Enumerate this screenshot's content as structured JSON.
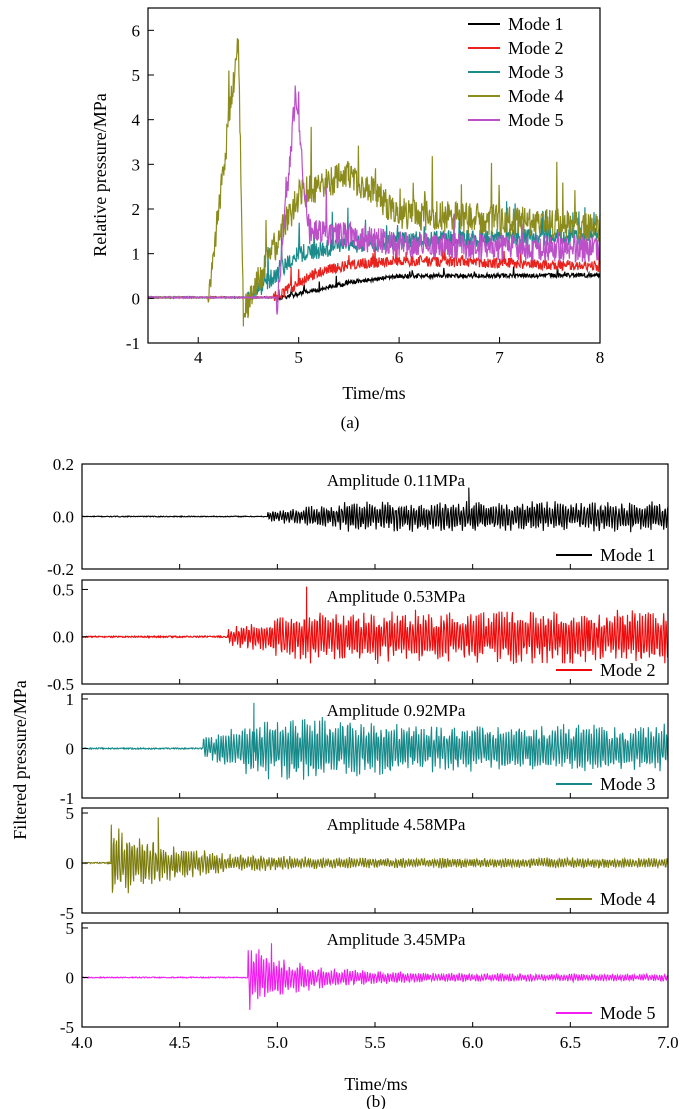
{
  "chart_data": [
    {
      "type": "line",
      "panel": "(a)",
      "xlabel": "Time/ms",
      "ylabel": "Relative pressure/MPa",
      "xlim": [
        3.5,
        8
      ],
      "ylim": [
        -1,
        6.5
      ],
      "xticks": [
        "4",
        "5",
        "6",
        "7",
        "8"
      ],
      "yticks": [
        "-1",
        "0",
        "1",
        "2",
        "3",
        "4",
        "5",
        "6"
      ],
      "legend_position": "top-right",
      "series": [
        {
          "name": "Mode 1",
          "color": "#000000",
          "onset": 4.8,
          "final": 0.5,
          "noise": 0.05,
          "x": [
            4.8,
            5.5,
            6.0,
            8.0
          ],
          "y": [
            0.0,
            0.35,
            0.5,
            0.52
          ]
        },
        {
          "name": "Mode 2",
          "color": "#e8231e",
          "onset": 4.75,
          "final": 0.75,
          "noise": 0.12,
          "x": [
            4.75,
            5.2,
            5.5,
            6.0,
            8.0
          ],
          "y": [
            0.0,
            0.6,
            0.75,
            0.85,
            0.72
          ]
        },
        {
          "name": "Mode 3",
          "color": "#1b8b8b",
          "onset": 4.5,
          "final": 1.35,
          "noise": 0.2,
          "x": [
            4.5,
            5.0,
            5.5,
            6.0,
            8.0
          ],
          "y": [
            0.0,
            1.0,
            1.2,
            1.3,
            1.4
          ]
        },
        {
          "name": "Mode 4",
          "color": "#8c8c1e",
          "onset": 4.1,
          "final": 1.6,
          "noise": 0.35,
          "x": [
            4.1,
            4.4,
            4.45,
            5.0,
            5.5,
            6.0,
            8.0
          ],
          "y": [
            0.0,
            5.8,
            -0.35,
            2.3,
            2.8,
            1.9,
            1.6
          ]
        },
        {
          "name": "Mode 5",
          "color": "#bb50c8",
          "onset": 4.78,
          "final": 1.1,
          "noise": 0.3,
          "x": [
            4.78,
            4.97,
            5.1,
            5.5,
            6.0,
            8.0
          ],
          "y": [
            -0.25,
            4.6,
            1.5,
            1.4,
            1.2,
            1.1
          ]
        }
      ]
    },
    {
      "type": "line",
      "panel": "(b)",
      "xlabel": "Time/ms",
      "ylabel": "Filtered pressure/MPa",
      "xlim": [
        4.0,
        7.0
      ],
      "xticks": [
        "4.0",
        "4.5",
        "5.0",
        "5.5",
        "6.0",
        "6.5",
        "7.0"
      ],
      "legend_position": "bottom-right",
      "subplots": [
        {
          "name": "Mode 1",
          "amplitude_label": "Amplitude 0.11MPa",
          "color": "#000000",
          "ylim": [
            -0.2,
            0.2
          ],
          "yticks": [
            "-0.2",
            "0.0",
            "0.2"
          ],
          "onset": 4.95,
          "amplitude": 0.11
        },
        {
          "name": "Mode 2",
          "amplitude_label": "Amplitude 0.53MPa",
          "color": "#ee0a0a",
          "ylim": [
            -0.5,
            0.6
          ],
          "yticks": [
            "-0.5",
            "0.0",
            "0.5"
          ],
          "onset": 4.75,
          "amplitude": 0.53
        },
        {
          "name": "Mode 3",
          "amplitude_label": "Amplitude 0.92MPa",
          "color": "#168a8a",
          "ylim": [
            -1,
            1.1
          ],
          "yticks": [
            "-1",
            "0",
            "1"
          ],
          "onset": 4.62,
          "amplitude": 0.92
        },
        {
          "name": "Mode 4",
          "amplitude_label": "Amplitude 4.58MPa",
          "color": "#7b7b0c",
          "ylim": [
            -5,
            5.5
          ],
          "yticks": [
            "-5",
            "0",
            "5"
          ],
          "onset": 4.15,
          "amplitude": 4.58
        },
        {
          "name": "Mode 5",
          "amplitude_label": "Amplitude 3.45MPa",
          "color": "#f01cf0",
          "ylim": [
            -5,
            5.5
          ],
          "yticks": [
            "-5",
            "0",
            "5"
          ],
          "onset": 4.85,
          "amplitude": 3.45
        }
      ]
    }
  ],
  "captions": {
    "a": "(a)",
    "b": "(b)"
  }
}
